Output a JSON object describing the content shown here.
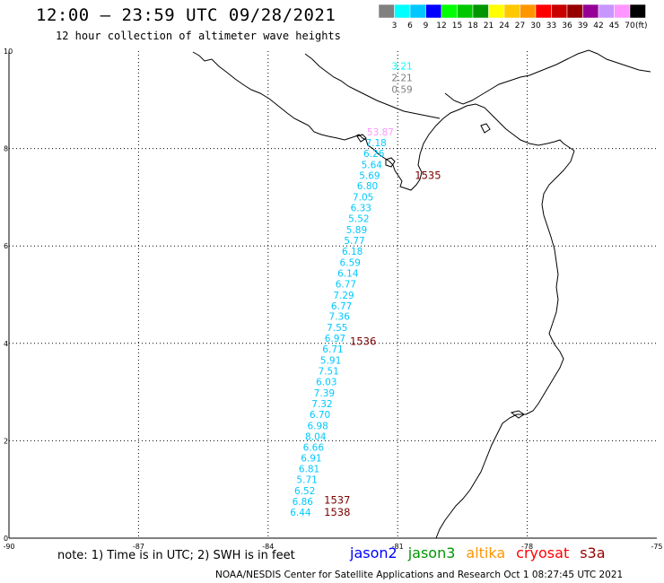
{
  "header": {
    "title": "12:00 – 23:59 UTC 09/28/2021",
    "subtitle": "12 hour collection of altimeter wave heights"
  },
  "colorbar": {
    "unit": "(ft)",
    "bins": [
      {
        "color": "#808080",
        "label": "3"
      },
      {
        "color": "#00ffff",
        "label": "6"
      },
      {
        "color": "#00c8ff",
        "label": "9"
      },
      {
        "color": "#0000ff",
        "label": "12"
      },
      {
        "color": "#00ff00",
        "label": "15"
      },
      {
        "color": "#00c800",
        "label": "18"
      },
      {
        "color": "#009600",
        "label": "21"
      },
      {
        "color": "#ffff00",
        "label": "24"
      },
      {
        "color": "#ffc800",
        "label": "27"
      },
      {
        "color": "#ff9600",
        "label": "30"
      },
      {
        "color": "#ff0000",
        "label": "33"
      },
      {
        "color": "#c80000",
        "label": "36"
      },
      {
        "color": "#960000",
        "label": "39"
      },
      {
        "color": "#960096",
        "label": "42"
      },
      {
        "color": "#c896ff",
        "label": "45"
      },
      {
        "color": "#ff96ff",
        "label": "70"
      },
      {
        "color": "#000000",
        "label": ""
      }
    ]
  },
  "map": {
    "lon_range": [
      -90,
      -75
    ],
    "lat_range": [
      0,
      10
    ],
    "x_ticks": [
      "-90",
      "-87",
      "-84",
      "-81",
      "-78",
      "-75"
    ],
    "y_ticks": [
      "0",
      "2",
      "4",
      "6",
      "8",
      "10"
    ]
  },
  "observations": [
    {
      "value": "3.21",
      "lon": -80.9,
      "lat": 9.62,
      "color": "#00ffff"
    },
    {
      "value": "2.21",
      "lon": -80.9,
      "lat": 9.38,
      "color": "#808080"
    },
    {
      "value": "0.59",
      "lon": -80.9,
      "lat": 9.14,
      "color": "#808080"
    },
    {
      "value": "53.87",
      "lon": -81.4,
      "lat": 8.27,
      "color": "#ff96ff"
    },
    {
      "value": "7.18",
      "lon": -81.5,
      "lat": 8.05,
      "color": "#00c8ff"
    },
    {
      "value": "6.26",
      "lon": -81.55,
      "lat": 7.83,
      "color": "#00c8ff"
    },
    {
      "value": "5.64",
      "lon": -81.6,
      "lat": 7.6,
      "color": "#00c8ff"
    },
    {
      "value": "5.69",
      "lon": -81.65,
      "lat": 7.38,
      "color": "#00c8ff"
    },
    {
      "value": "6.80",
      "lon": -81.7,
      "lat": 7.16,
      "color": "#00c8ff"
    },
    {
      "value": "7.05",
      "lon": -81.8,
      "lat": 6.93,
      "color": "#00c8ff"
    },
    {
      "value": "6.33",
      "lon": -81.85,
      "lat": 6.71,
      "color": "#00c8ff"
    },
    {
      "value": "5.52",
      "lon": -81.9,
      "lat": 6.49,
      "color": "#00c8ff"
    },
    {
      "value": "5.89",
      "lon": -81.95,
      "lat": 6.26,
      "color": "#00c8ff"
    },
    {
      "value": "5.77",
      "lon": -82.0,
      "lat": 6.04,
      "color": "#00c8ff"
    },
    {
      "value": "6.18",
      "lon": -82.05,
      "lat": 5.82,
      "color": "#00c8ff"
    },
    {
      "value": "6.59",
      "lon": -82.1,
      "lat": 5.59,
      "color": "#00c8ff"
    },
    {
      "value": "6.14",
      "lon": -82.15,
      "lat": 5.37,
      "color": "#00c8ff"
    },
    {
      "value": "6.77",
      "lon": -82.2,
      "lat": 5.15,
      "color": "#00c8ff"
    },
    {
      "value": "7.29",
      "lon": -82.25,
      "lat": 4.92,
      "color": "#00c8ff"
    },
    {
      "value": "6.77",
      "lon": -82.3,
      "lat": 4.7,
      "color": "#00c8ff"
    },
    {
      "value": "7.36",
      "lon": -82.35,
      "lat": 4.48,
      "color": "#00c8ff"
    },
    {
      "value": "7.55",
      "lon": -82.4,
      "lat": 4.25,
      "color": "#00c8ff"
    },
    {
      "value": "6.97",
      "lon": -82.45,
      "lat": 4.03,
      "color": "#00c8ff"
    },
    {
      "value": "6.71",
      "lon": -82.5,
      "lat": 3.81,
      "color": "#00c8ff"
    },
    {
      "value": "5.91",
      "lon": -82.55,
      "lat": 3.58,
      "color": "#00c8ff"
    },
    {
      "value": "7.51",
      "lon": -82.6,
      "lat": 3.36,
      "color": "#00c8ff"
    },
    {
      "value": "6.03",
      "lon": -82.65,
      "lat": 3.14,
      "color": "#00c8ff"
    },
    {
      "value": "7.39",
      "lon": -82.7,
      "lat": 2.91,
      "color": "#00c8ff"
    },
    {
      "value": "7.32",
      "lon": -82.75,
      "lat": 2.69,
      "color": "#00c8ff"
    },
    {
      "value": "6.70",
      "lon": -82.8,
      "lat": 2.47,
      "color": "#00c8ff"
    },
    {
      "value": "6.98",
      "lon": -82.85,
      "lat": 2.24,
      "color": "#00c8ff"
    },
    {
      "value": "8.04",
      "lon": -82.9,
      "lat": 2.02,
      "color": "#00c8ff"
    },
    {
      "value": "6.66",
      "lon": -82.95,
      "lat": 1.8,
      "color": "#00c8ff"
    },
    {
      "value": "6.91",
      "lon": -83.0,
      "lat": 1.57,
      "color": "#00c8ff"
    },
    {
      "value": "6.81",
      "lon": -83.05,
      "lat": 1.35,
      "color": "#00c8ff"
    },
    {
      "value": "5.71",
      "lon": -83.1,
      "lat": 1.13,
      "color": "#00c8ff"
    },
    {
      "value": "6.52",
      "lon": -83.15,
      "lat": 0.9,
      "color": "#00c8ff"
    },
    {
      "value": "6.86",
      "lon": -83.2,
      "lat": 0.68,
      "color": "#00c8ff"
    },
    {
      "value": "6.44",
      "lon": -83.25,
      "lat": 0.46,
      "color": "#00c8ff"
    }
  ],
  "pass_times": [
    {
      "value": "1535",
      "lon": -80.3,
      "lat": 7.38
    },
    {
      "value": "1536",
      "lon": -81.8,
      "lat": 3.97
    },
    {
      "value": "1537",
      "lon": -82.4,
      "lat": 0.71
    },
    {
      "value": "1538",
      "lon": -82.4,
      "lat": 0.46
    }
  ],
  "footer": {
    "note": "note:  1) Time is in UTC;  2) SWH is in feet",
    "satellites": [
      {
        "name": "jason2",
        "color": "#0000ff"
      },
      {
        "name": "jason3",
        "color": "#009600"
      },
      {
        "name": "altika",
        "color": "#ff9600"
      },
      {
        "name": "cryosat",
        "color": "#ff0000"
      },
      {
        "name": "s3a",
        "color": "#960000"
      }
    ],
    "credit": "NOAA/NESDIS Center for Satellite Applications and Research    Oct  1 08:27:45 UTC 2021"
  }
}
